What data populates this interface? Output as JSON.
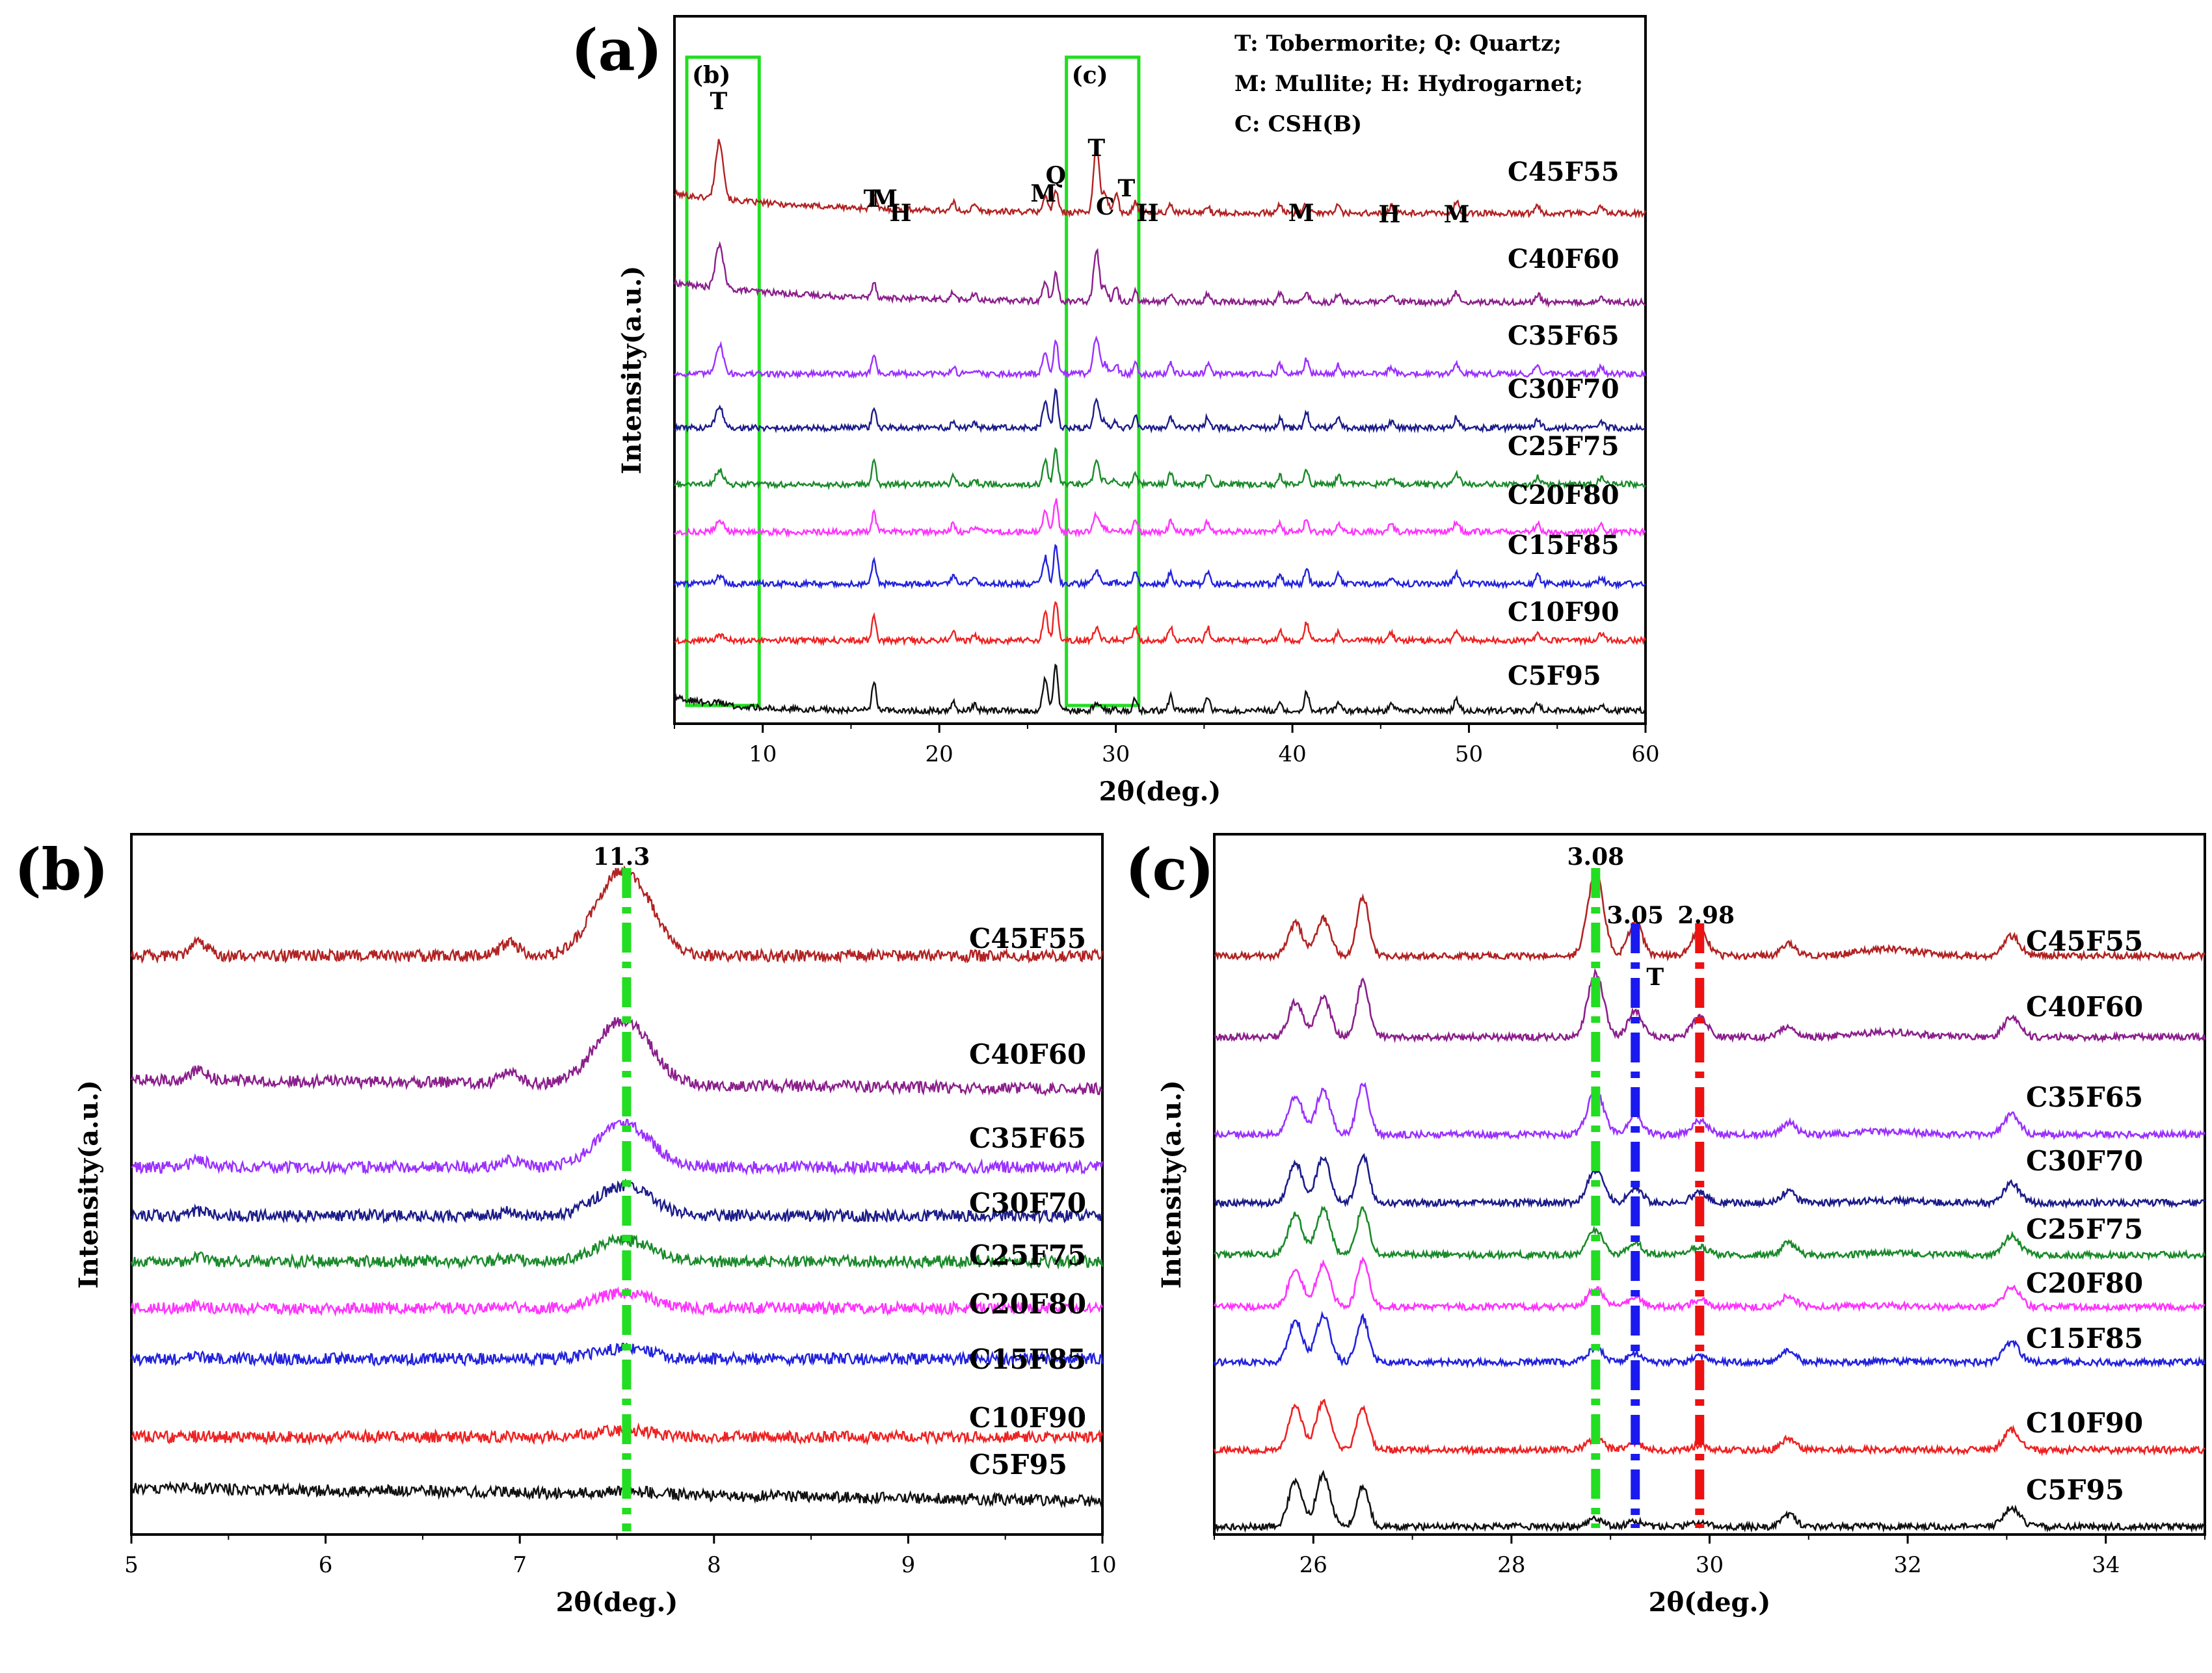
{
  "figure": {
    "panels": [
      {
        "id": "a",
        "label": "(a)"
      },
      {
        "id": "b",
        "label": "(b)"
      },
      {
        "id": "c",
        "label": "(c)"
      }
    ]
  },
  "chart_data": [
    {
      "id": "a",
      "type": "line",
      "panel_label": "(a)",
      "xlabel": "2θ(deg.)",
      "ylabel": "Intensity(a.u.)",
      "xlim": [
        5,
        60
      ],
      "xticks": [
        10,
        20,
        30,
        40,
        50,
        60
      ],
      "legend_lines": [
        "T: Tobermorite;  Q: Quartz;",
        "M: Mullite; H: Hydrogarnet;",
        "C: CSH(B)"
      ],
      "boxes": [
        {
          "label": "(b)",
          "x": [
            5.7,
            9.8
          ]
        },
        {
          "label": "(c)",
          "x": [
            27.2,
            31.3
          ]
        }
      ],
      "phase_labels": [
        {
          "text": "T",
          "x": 7.5
        },
        {
          "text": "T",
          "x": 16.2
        },
        {
          "text": "M",
          "x": 16.9
        },
        {
          "text": "H",
          "x": 17.8
        },
        {
          "text": "M",
          "x": 25.9
        },
        {
          "text": "Q",
          "x": 26.6
        },
        {
          "text": "T",
          "x": 28.9
        },
        {
          "text": "C",
          "x": 29.4
        },
        {
          "text": "T",
          "x": 30.6
        },
        {
          "text": "H",
          "x": 31.8
        },
        {
          "text": "M",
          "x": 40.5
        },
        {
          "text": "H",
          "x": 45.5
        },
        {
          "text": "M",
          "x": 49.3
        }
      ],
      "series": [
        {
          "name": "C45F55",
          "color": "#b22222"
        },
        {
          "name": "C40F60",
          "color": "#8b1f8b"
        },
        {
          "name": "C35F65",
          "color": "#9b30ff"
        },
        {
          "name": "C30F70",
          "color": "#1c1c8a"
        },
        {
          "name": "C25F75",
          "color": "#1a8a2a"
        },
        {
          "name": "C20F80",
          "color": "#ff33ff"
        },
        {
          "name": "C15F85",
          "color": "#2222dd"
        },
        {
          "name": "C10F90",
          "color": "#ee2222"
        },
        {
          "name": "C5F95",
          "color": "#111111"
        }
      ]
    },
    {
      "id": "b",
      "type": "line",
      "panel_label": "(b)",
      "xlabel": "2θ(deg.)",
      "ylabel": "Intensity(a.u.)",
      "xlim": [
        5,
        10
      ],
      "xticks": [
        5,
        6,
        7,
        8,
        9,
        10
      ],
      "reference_lines": [
        {
          "x": 7.55,
          "label": "11.3",
          "color": "#22dd22"
        }
      ],
      "series": [
        {
          "name": "C45F55",
          "color": "#b22222"
        },
        {
          "name": "C40F60",
          "color": "#8b1f8b"
        },
        {
          "name": "C35F65",
          "color": "#9b30ff"
        },
        {
          "name": "C30F70",
          "color": "#1c1c8a"
        },
        {
          "name": "C25F75",
          "color": "#1a8a2a"
        },
        {
          "name": "C20F80",
          "color": "#ff33ff"
        },
        {
          "name": "C15F85",
          "color": "#2222dd"
        },
        {
          "name": "C10F90",
          "color": "#ee2222"
        },
        {
          "name": "C5F95",
          "color": "#111111"
        }
      ]
    },
    {
      "id": "c",
      "type": "line",
      "panel_label": "(c)",
      "xlabel": "2θ(deg.)",
      "ylabel": "Intensity(a.u.)",
      "xlim": [
        25,
        35
      ],
      "xticks": [
        26,
        28,
        30,
        32,
        34
      ],
      "reference_lines": [
        {
          "x": 28.85,
          "label": "3.08",
          "color": "#22dd22"
        },
        {
          "x": 29.25,
          "label": "3.05",
          "color": "#1a1aee"
        },
        {
          "x": 29.9,
          "label": "2.98",
          "color": "#ee1111"
        }
      ],
      "annotation": {
        "text": "T",
        "x": 29.45
      },
      "series": [
        {
          "name": "C45F55",
          "color": "#b22222"
        },
        {
          "name": "C40F60",
          "color": "#8b1f8b"
        },
        {
          "name": "C35F65",
          "color": "#9b30ff"
        },
        {
          "name": "C30F70",
          "color": "#1c1c8a"
        },
        {
          "name": "C25F75",
          "color": "#1a8a2a"
        },
        {
          "name": "C20F80",
          "color": "#ff33ff"
        },
        {
          "name": "C15F85",
          "color": "#2222dd"
        },
        {
          "name": "C10F90",
          "color": "#ee2222"
        },
        {
          "name": "C5F95",
          "color": "#111111"
        }
      ]
    }
  ]
}
